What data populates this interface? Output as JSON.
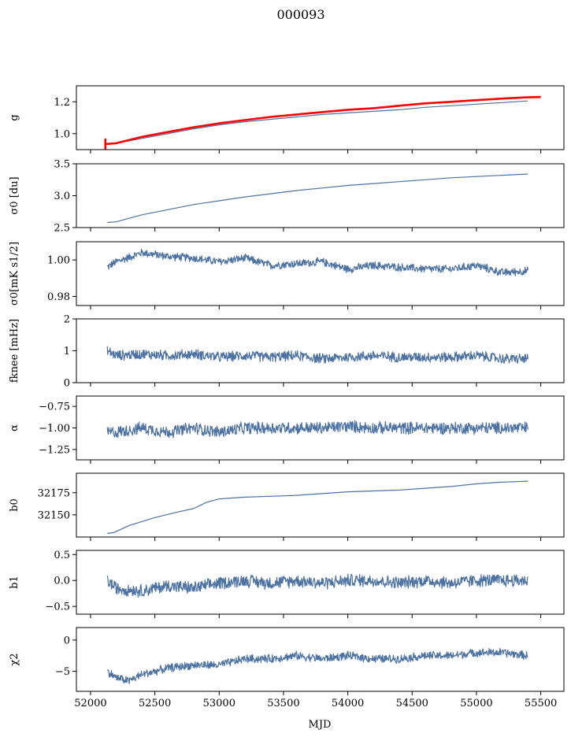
{
  "figure": {
    "title": "000093",
    "xlabel": "MJD"
  },
  "colors": {
    "series": "#4c72a4",
    "highlight": "#ff0000",
    "axes": "#000000"
  },
  "chart_data": [
    {
      "type": "line",
      "ylabel": "g",
      "ylim": [
        0.9,
        1.3
      ],
      "yticks": [
        1.0,
        1.2
      ],
      "ytick_labels": [
        "1.0",
        "1.2"
      ],
      "series": [
        {
          "name": "",
          "x": [
            52130,
            52200,
            52400,
            52600,
            52800,
            53000,
            53200,
            53400,
            53600,
            53800,
            54000,
            54200,
            54400,
            54600,
            54800,
            55000,
            55200,
            55400
          ],
          "y": [
            0.935,
            0.94,
            0.97,
            1.0,
            1.03,
            1.055,
            1.075,
            1.09,
            1.105,
            1.12,
            1.13,
            1.14,
            1.15,
            1.165,
            1.175,
            1.185,
            1.195,
            1.205
          ]
        },
        {
          "name": "",
          "x": [
            52115,
            52200,
            52400,
            52600,
            52800,
            53000,
            53200,
            53400,
            53600,
            53800,
            54000,
            54200,
            54400,
            54600,
            54800,
            55000,
            55200,
            55400,
            55500
          ],
          "y": [
            0.935,
            0.94,
            0.98,
            1.01,
            1.04,
            1.065,
            1.085,
            1.105,
            1.12,
            1.135,
            1.15,
            1.16,
            1.175,
            1.19,
            1.2,
            1.21,
            1.22,
            1.228,
            1.23
          ]
        }
      ]
    },
    {
      "type": "line",
      "ylabel": "σ0 [du]",
      "ylim": [
        2.5,
        3.5
      ],
      "yticks": [
        2.5,
        3.0,
        3.5
      ],
      "ytick_labels": [
        "2.5",
        "3.0",
        "3.5"
      ],
      "series": [
        {
          "name": "",
          "x": [
            52130,
            52200,
            52400,
            52600,
            52800,
            53000,
            53200,
            53400,
            53600,
            53800,
            54000,
            54200,
            54400,
            54600,
            54800,
            55000,
            55200,
            55400
          ],
          "y": [
            2.58,
            2.59,
            2.7,
            2.78,
            2.86,
            2.92,
            2.98,
            3.03,
            3.08,
            3.12,
            3.16,
            3.19,
            3.22,
            3.25,
            3.28,
            3.3,
            3.32,
            3.34
          ]
        }
      ]
    },
    {
      "type": "line",
      "ylabel": "σ0[mK s1/2]",
      "ylim": [
        0.975,
        1.01
      ],
      "yticks": [
        0.98,
        1.0
      ],
      "ytick_labels": [
        "0.98",
        "1.00"
      ],
      "series": [
        {
          "name": "",
          "x": [
            52130,
            52200,
            52400,
            52600,
            52800,
            53000,
            53200,
            53400,
            53600,
            53800,
            54000,
            54200,
            54400,
            54600,
            54800,
            55000,
            55200,
            55400
          ],
          "y": [
            0.996,
            0.999,
            1.004,
            1.002,
            1.001,
            0.999,
            1.001,
            0.997,
            0.998,
            0.999,
            0.995,
            0.997,
            0.996,
            0.995,
            0.995,
            0.997,
            0.993,
            0.994
          ]
        }
      ]
    },
    {
      "type": "line",
      "ylabel": "fknee [mHz]",
      "ylim": [
        0,
        2
      ],
      "yticks": [
        0,
        1,
        2
      ],
      "ytick_labels": [
        "0",
        "1",
        "2"
      ],
      "series": [
        {
          "name": "",
          "x": [
            52130,
            52200,
            52400,
            52600,
            52800,
            53000,
            53200,
            53400,
            53600,
            53800,
            54000,
            54200,
            54400,
            54600,
            54800,
            55000,
            55200,
            55400
          ],
          "y": [
            1.0,
            0.85,
            0.9,
            0.85,
            0.9,
            0.8,
            0.85,
            0.8,
            0.85,
            0.75,
            0.8,
            0.85,
            0.8,
            0.8,
            0.8,
            0.85,
            0.75,
            0.75
          ]
        }
      ]
    },
    {
      "type": "line",
      "ylabel": "α",
      "ylim": [
        -1.37,
        -0.63
      ],
      "yticks": [
        -1.25,
        -1.0,
        -0.75
      ],
      "ytick_labels": [
        "−1.25",
        "−1.00",
        "−0.75"
      ],
      "series": [
        {
          "name": "",
          "x": [
            52130,
            52200,
            52400,
            52600,
            52800,
            53000,
            53200,
            53400,
            53600,
            53800,
            54000,
            54200,
            54400,
            54600,
            54800,
            55000,
            55200,
            55400
          ],
          "y": [
            -1.05,
            -1.05,
            -1.0,
            -1.05,
            -1.0,
            -1.05,
            -1.0,
            -1.0,
            -1.0,
            -1.0,
            -0.98,
            -1.0,
            -1.0,
            -1.0,
            -1.0,
            -1.0,
            -1.0,
            -1.0
          ]
        }
      ]
    },
    {
      "type": "line",
      "ylabel": "b0",
      "ylim": [
        32125,
        32197
      ],
      "yticks": [
        32150,
        32175
      ],
      "ytick_labels": [
        "32150",
        "32175"
      ],
      "series": [
        {
          "name": "",
          "x": [
            52130,
            52180,
            52300,
            52500,
            52700,
            52800,
            52900,
            53000,
            53200,
            53400,
            53600,
            53800,
            54000,
            54200,
            54400,
            54600,
            54800,
            55000,
            55200,
            55400
          ],
          "y": [
            32129,
            32130,
            32138,
            32147,
            32154,
            32157,
            32164,
            32168,
            32170,
            32171,
            32172,
            32174,
            32176,
            32177,
            32178,
            32180,
            32182,
            32185,
            32187,
            32188
          ]
        }
      ]
    },
    {
      "type": "line",
      "ylabel": "b1",
      "ylim": [
        -0.65,
        0.58
      ],
      "yticks": [
        -0.5,
        0.0,
        0.5
      ],
      "ytick_labels": [
        "−0.5",
        "0.0",
        "0.5"
      ],
      "series": [
        {
          "name": "",
          "x": [
            52130,
            52200,
            52400,
            52600,
            52800,
            53000,
            53200,
            53400,
            53600,
            53800,
            54000,
            54200,
            54400,
            54600,
            54800,
            55000,
            55200,
            55400
          ],
          "y": [
            0.0,
            -0.15,
            -0.2,
            -0.1,
            -0.15,
            -0.05,
            0.0,
            -0.05,
            0.0,
            -0.05,
            0.0,
            0.0,
            -0.05,
            0.0,
            -0.05,
            0.0,
            0.0,
            0.0
          ]
        }
      ]
    },
    {
      "type": "line",
      "ylabel": "χ2",
      "ylim": [
        -8.2,
        2.0
      ],
      "yticks": [
        -5,
        0
      ],
      "ytick_labels": [
        "−5",
        "0"
      ],
      "series": [
        {
          "name": "",
          "x": [
            52130,
            52200,
            52300,
            52400,
            52600,
            52800,
            53000,
            53200,
            53400,
            53600,
            53800,
            54000,
            54200,
            54400,
            54600,
            54800,
            55000,
            55200,
            55400
          ],
          "y": [
            -5.0,
            -6.0,
            -6.5,
            -5.5,
            -4.5,
            -4.0,
            -4.0,
            -3.0,
            -3.0,
            -2.5,
            -3.0,
            -2.5,
            -3.0,
            -3.0,
            -2.5,
            -2.5,
            -2.0,
            -2.0,
            -2.5
          ]
        }
      ]
    }
  ],
  "xaxis": {
    "xlim": [
      51890,
      55680
    ],
    "ticks": [
      52000,
      52500,
      53000,
      53500,
      54000,
      54500,
      55000,
      55500
    ],
    "tick_labels": [
      "52000",
      "52500",
      "53000",
      "53500",
      "54000",
      "54500",
      "55000",
      "55500"
    ]
  }
}
